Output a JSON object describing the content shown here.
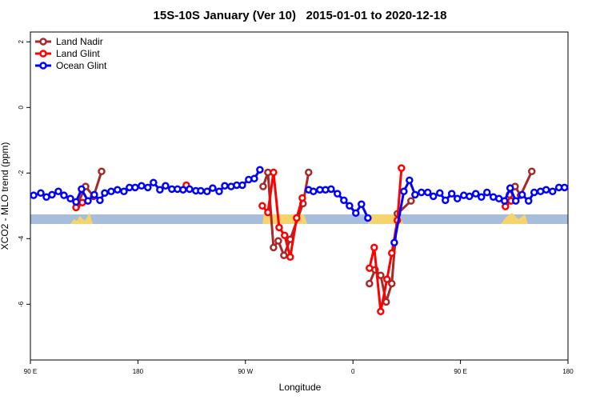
{
  "chart_data": {
    "type": "line",
    "title": "15S-10S January (Ver 10)   2015-01-01 to 2020-12-18",
    "x_label": "Longitude",
    "y_label": "XCO2 - MLO trend (ppm)",
    "xlim": [
      90,
      540
    ],
    "ylim": [
      -7.7,
      2.3
    ],
    "xticks": [
      {
        "value": 90,
        "label": "90 E"
      },
      180,
      {
        "value": 270,
        "label": "90 W"
      },
      {
        "value": 360,
        "label": "0"
      },
      {
        "value": 450,
        "label": "90 E"
      },
      {
        "value": 540,
        "label": "180"
      }
    ],
    "yticks": [
      2,
      0,
      -2,
      -4,
      -6
    ],
    "legend": "top-left",
    "series": [
      {
        "name": "Land Nadir",
        "color": "#a52a2a",
        "x": [
          128.8,
          136.2,
          142.9,
          149.6,
          200,
          284.8,
          288.8,
          293.5,
          297.5,
          302.2,
          307.5,
          318.2,
          322.9,
          350,
          373.8,
          378.5,
          383.2,
          387.8,
          392.5,
          397.2,
          408.6,
          450,
          491,
          495.7,
          500.3,
          509.7
        ],
        "values": [
          -3.0,
          -2.41,
          -2.71,
          -1.95,
          null,
          -2.41,
          -1.98,
          -4.27,
          -4.07,
          -4.51,
          -4.02,
          -2.93,
          -1.98,
          null,
          -5.37,
          -4.95,
          -5.12,
          -5.93,
          -5.37,
          -3.24,
          -2.85,
          null,
          -2.66,
          -2.41,
          -2.68,
          -1.95
        ]
      },
      {
        "name": "Land Glint",
        "color": "#ff0000",
        "x": [
          128.2,
          133.5,
          180,
          220.5,
          250,
          284.1,
          288.8,
          293.5,
          298.2,
          302.8,
          307.5,
          312.9,
          317.6,
          350,
          373.8,
          377.8,
          383.2,
          388.5,
          392.5,
          397.2,
          400.6,
          450,
          487.6,
          492.3
        ],
        "values": [
          -3.05,
          -2.9,
          null,
          -2.37,
          null,
          -3.0,
          -3.2,
          -1.98,
          -3.66,
          -3.9,
          -4.56,
          -3.37,
          -2.76,
          null,
          -4.9,
          -4.27,
          -6.22,
          -5.24,
          -4.44,
          -3.44,
          -1.85,
          null,
          -3.02,
          -2.85
        ]
      },
      {
        "name": "Ocean Glint",
        "color": "#0000ff",
        "x": [
          92.7,
          98.7,
          103.4,
          108.1,
          113.4,
          118.1,
          123.5,
          128.2,
          132.8,
          138.2,
          143.5,
          148.2,
          152.2,
          157.6,
          162.9,
          168.3,
          172.9,
          177.7,
          183,
          188.3,
          193,
          198.4,
          203.1,
          208.4,
          213.1,
          217.8,
          223.2,
          228.5,
          232.6,
          237.9,
          242.6,
          248,
          252.7,
          258,
          262.7,
          267.4,
          272.7,
          277.4,
          282.1,
          300,
          322.9,
          326.9,
          332.3,
          337,
          341.7,
          347,
          352.4,
          357.1,
          362.4,
          367.1,
          372.5,
          385,
          394.6,
          402.6,
          407.3,
          412,
          417.3,
          422.6,
          427.3,
          432.7,
          437.4,
          442.7,
          447.4,
          452.8,
          457.5,
          462.8,
          467.5,
          472.2,
          477.5,
          482.2,
          486.9,
          491.6,
          496.3,
          501.6,
          507,
          511.7,
          517,
          521.7,
          527.1,
          532.4,
          537.1
        ],
        "values": [
          -2.68,
          -2.61,
          -2.73,
          -2.66,
          -2.56,
          -2.68,
          -2.78,
          -2.88,
          -2.49,
          -2.85,
          -2.66,
          -2.83,
          -2.61,
          -2.56,
          -2.51,
          -2.56,
          -2.44,
          -2.44,
          -2.39,
          -2.44,
          -2.29,
          -2.51,
          -2.39,
          -2.49,
          -2.49,
          -2.51,
          -2.49,
          -2.54,
          -2.54,
          -2.56,
          -2.46,
          -2.56,
          -2.39,
          -2.41,
          -2.37,
          -2.37,
          -2.2,
          -2.17,
          -1.9,
          null,
          -2.51,
          -2.56,
          -2.51,
          -2.51,
          -2.49,
          -2.63,
          -2.83,
          -3.0,
          -3.22,
          -2.95,
          -3.37,
          null,
          -4.12,
          -2.56,
          -2.22,
          -2.66,
          -2.59,
          -2.59,
          -2.71,
          -2.61,
          -2.83,
          -2.63,
          -2.78,
          -2.68,
          -2.71,
          -2.63,
          -2.73,
          -2.59,
          -2.73,
          -2.78,
          -2.85,
          -2.46,
          -2.85,
          -2.66,
          -2.85,
          -2.59,
          -2.56,
          -2.51,
          -2.56,
          -2.44,
          -2.44
        ]
      }
    ]
  }
}
